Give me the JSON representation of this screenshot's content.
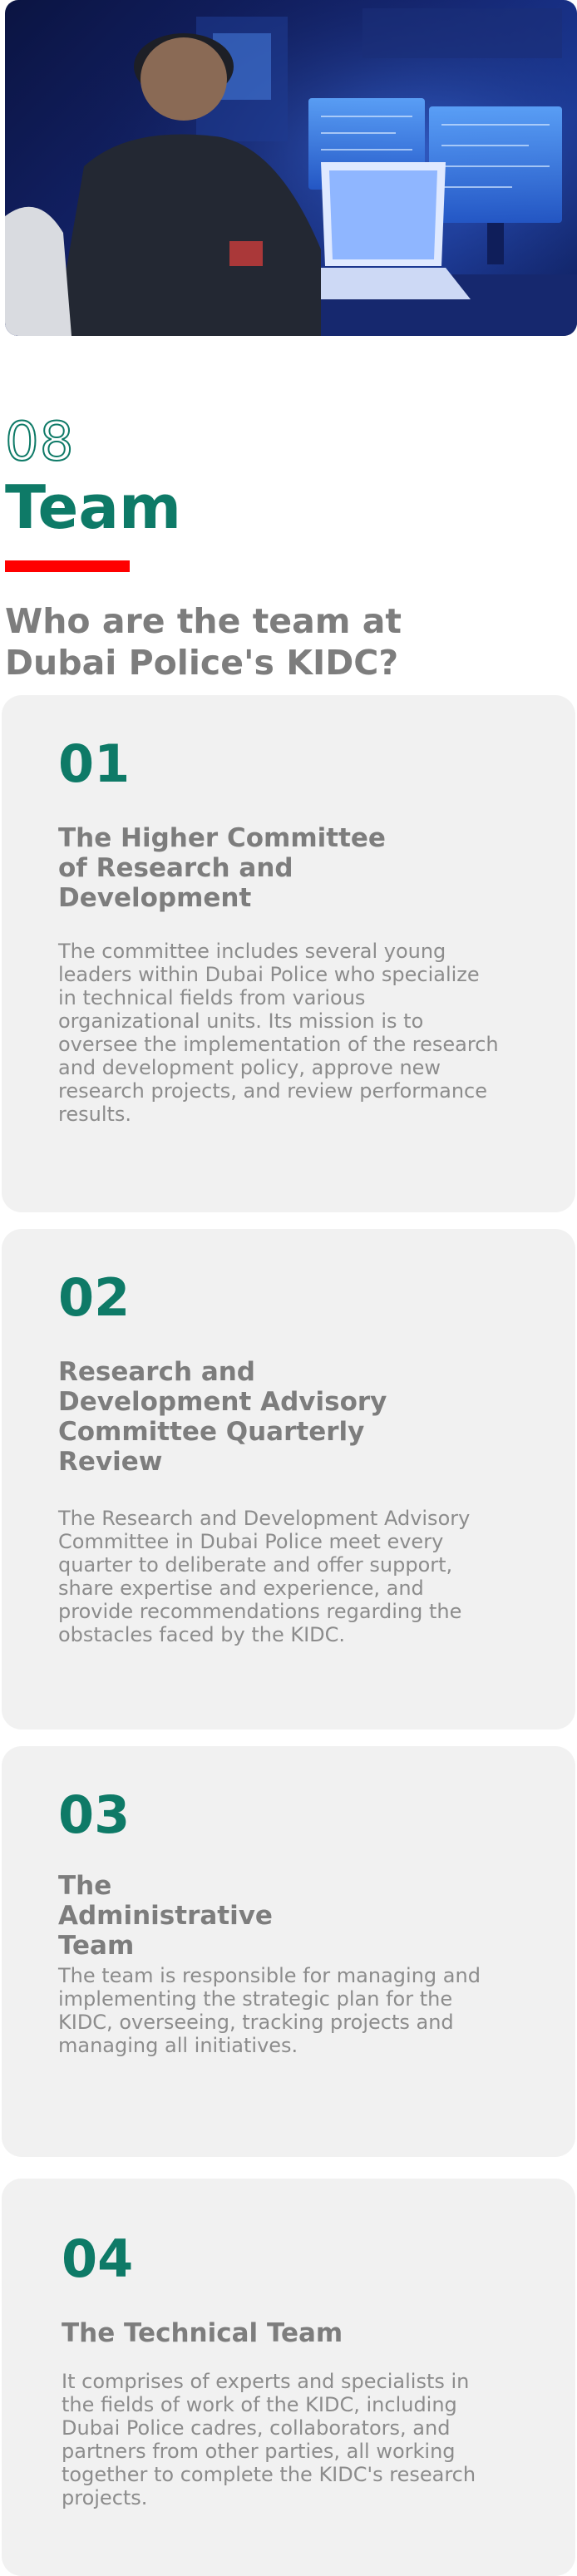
{
  "hero": {
    "image": "police-officer-cyber-monitoring-photo"
  },
  "section": {
    "number": "08",
    "title": "Team",
    "subtitle": "Who are the team at Dubai Police's KIDC?",
    "accent_color": "#0e7a67",
    "bar_color": "#ff0000"
  },
  "cards": [
    {
      "number": "01",
      "title": "The Higher Committee of Research and Development",
      "text": "The committee includes several young leaders within Dubai Police who specialize in technical fields from various organizational units. Its mission is to oversee the implementation of the research and development policy, approve new research projects, and review performance results."
    },
    {
      "number": "02",
      "title": "Research and Development Advisory Committee Quarterly Review",
      "text": "The Research and Development Advisory Committee in Dubai Police meet every quarter to deliberate and offer support, share expertise and experience, and provide recommendations regarding the obstacles faced by the KIDC."
    },
    {
      "number": "03",
      "title": "The Administrative Team",
      "text": "The team is responsible for managing and implementing the strategic plan for the KIDC, overseeing, tracking projects and managing all initiatives."
    },
    {
      "number": "04",
      "title": "The Technical Team",
      "text": "It comprises of experts and specialists in the fields of work of the KIDC, including Dubai Police cadres, collaborators, and partners from other parties, all working together to complete the KIDC's research projects."
    }
  ]
}
